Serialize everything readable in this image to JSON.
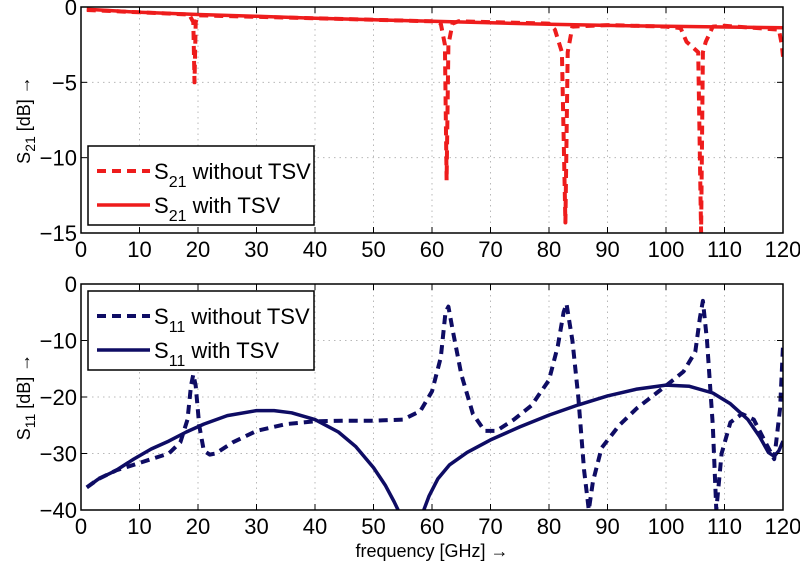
{
  "chart_data": [
    {
      "type": "line",
      "id": "top",
      "title": "",
      "xlabel": "",
      "ylabel": "S21 [dB] →",
      "ylabel_main": "S",
      "ylabel_sub": "21",
      "ylabel_rest": " [dB] →",
      "xlim": [
        0,
        120
      ],
      "ylim": [
        -15,
        0
      ],
      "xticks": [
        0,
        10,
        20,
        30,
        40,
        50,
        60,
        70,
        80,
        90,
        100,
        110,
        120
      ],
      "yticks": [
        0,
        -5,
        -10,
        -15
      ],
      "ytick_labels": [
        "0",
        "−5",
        "−10",
        "−15"
      ],
      "grid": true,
      "legend_position": "lower-left",
      "color": "#ee1c1c",
      "series": [
        {
          "name": "S21 without TSV",
          "legend_main": "S",
          "legend_sub": "21",
          "legend_rest": " without TSV",
          "style": "dashed",
          "x": [
            1,
            10,
            18.5,
            19.2,
            19.4,
            19.6,
            20,
            30,
            40,
            50,
            60,
            61.5,
            62.2,
            62.5,
            62.8,
            63.5,
            64.5,
            70,
            80,
            81,
            82.2,
            82.8,
            83.2,
            84,
            90,
            100,
            102.5,
            103.5,
            105.5,
            106,
            106.3,
            106.8,
            108,
            110,
            119.3,
            119.8,
            120
          ],
          "y": [
            -0.2,
            -0.35,
            -0.5,
            -1.0,
            -5.0,
            -1.0,
            -0.55,
            -0.65,
            -0.75,
            -0.85,
            -0.95,
            -1.1,
            -2.5,
            -11.5,
            -2.5,
            -1.1,
            -0.95,
            -1.0,
            -1.1,
            -1.5,
            -3.0,
            -14.3,
            -3.0,
            -1.3,
            -1.2,
            -1.3,
            -1.4,
            -2.3,
            -3.0,
            -15,
            -3.0,
            -2.3,
            -1.3,
            -1.25,
            -1.5,
            -2.5,
            -3.3
          ]
        },
        {
          "name": "S21 with TSV",
          "legend_main": "S",
          "legend_sub": "21",
          "legend_rest": " with TSV",
          "style": "solid",
          "x": [
            1,
            10,
            20,
            30,
            40,
            50,
            60,
            70,
            80,
            90,
            100,
            110,
            120
          ],
          "y": [
            -0.15,
            -0.35,
            -0.5,
            -0.62,
            -0.75,
            -0.85,
            -0.95,
            -1.05,
            -1.15,
            -1.22,
            -1.28,
            -1.33,
            -1.38
          ]
        }
      ]
    },
    {
      "type": "line",
      "id": "bottom",
      "title": "",
      "xlabel": "frequency [GHz] →",
      "ylabel": "S11 [dB] →",
      "ylabel_main": "S",
      "ylabel_sub": "11",
      "ylabel_rest": " [dB] →",
      "xlim": [
        0,
        120
      ],
      "ylim": [
        -40,
        0
      ],
      "xticks": [
        0,
        10,
        20,
        30,
        40,
        50,
        60,
        70,
        80,
        90,
        100,
        110,
        120
      ],
      "yticks": [
        0,
        -10,
        -20,
        -30,
        -40
      ],
      "ytick_labels": [
        "0",
        "−10",
        "−20",
        "−30",
        "−40"
      ],
      "grid": true,
      "legend_position": "upper-left",
      "color": "#0e0c64",
      "series": [
        {
          "name": "S11 without TSV",
          "legend_main": "S",
          "legend_sub": "11",
          "legend_rest": " without TSV",
          "style": "dashed",
          "x": [
            1,
            3,
            6,
            9,
            12,
            15,
            17,
            18.2,
            18.8,
            19.2,
            19.6,
            20.2,
            21,
            22,
            23,
            26,
            30,
            35,
            40,
            45,
            50,
            55,
            58,
            60,
            61.5,
            62.3,
            62.8,
            63.5,
            65,
            67,
            69,
            71,
            74,
            77,
            80,
            81.5,
            82.5,
            83,
            84,
            85,
            86,
            86.8,
            87.5,
            89,
            92,
            95,
            100,
            103,
            105,
            105.8,
            106.3,
            107,
            108,
            108.6,
            109.5,
            111,
            113,
            115,
            117,
            118.5,
            119.5,
            120
          ],
          "y": [
            -36,
            -34.5,
            -33,
            -32,
            -31,
            -30,
            -28,
            -24,
            -18,
            -16,
            -18,
            -25,
            -29.5,
            -30.2,
            -30,
            -28,
            -26,
            -24.8,
            -24.3,
            -24.2,
            -24.2,
            -24,
            -22.5,
            -19,
            -13,
            -5,
            -4,
            -8,
            -16,
            -23,
            -26,
            -26,
            -24,
            -21.5,
            -17,
            -11,
            -5,
            -3.5,
            -10,
            -20,
            -33,
            -40,
            -35,
            -29,
            -25,
            -22,
            -18,
            -15.5,
            -12,
            -6,
            -3,
            -10,
            -25,
            -40,
            -30,
            -24.5,
            -23,
            -24,
            -28,
            -31,
            -22,
            -11
          ]
        },
        {
          "name": "S11 with TSV",
          "legend_main": "S",
          "legend_sub": "11",
          "legend_rest": " with TSV",
          "style": "solid",
          "x": [
            1,
            3,
            6,
            9,
            12,
            15,
            18,
            21,
            25,
            30,
            33,
            36,
            40,
            44,
            47,
            50,
            52,
            53.5,
            54.2
          ],
          "y": [
            -36,
            -34.5,
            -33,
            -31,
            -29.2,
            -27.8,
            -26.2,
            -24.8,
            -23.3,
            -22.4,
            -22.4,
            -22.8,
            -24,
            -26.2,
            -28.8,
            -32.5,
            -35.6,
            -38.5,
            -40
          ],
          "x2": [
            58.6,
            59.5,
            61,
            63,
            66,
            70,
            75,
            80,
            85,
            90,
            95,
            100,
            104,
            108,
            111,
            114,
            116,
            117.5,
            118.5,
            119.3,
            120
          ],
          "y2": [
            -40,
            -37.5,
            -34.5,
            -32,
            -29.8,
            -27.6,
            -25.3,
            -23.2,
            -21.4,
            -19.8,
            -18.6,
            -17.9,
            -18.1,
            -19.3,
            -21.2,
            -24,
            -27,
            -29.8,
            -30.5,
            -29.5,
            -27.8
          ]
        }
      ]
    }
  ]
}
